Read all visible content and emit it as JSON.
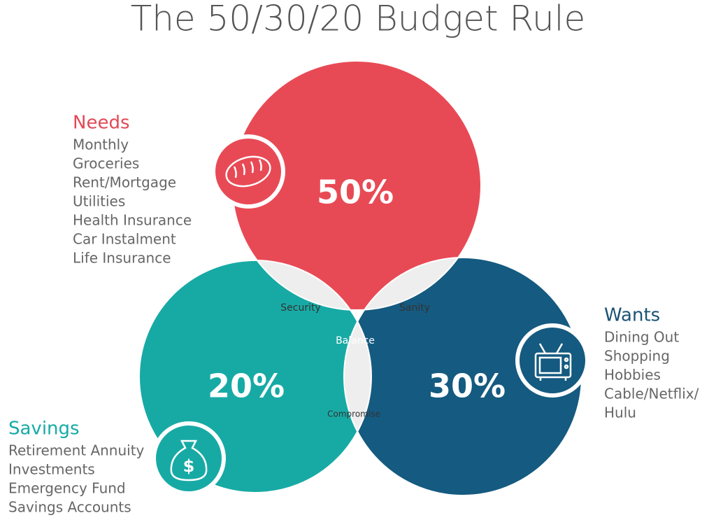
{
  "title": "The 50/30/20 Budget Rule",
  "groups": [
    {
      "label": "Needs",
      "percent": "50%",
      "items": [
        "Monthly",
        "Groceries",
        "Rent/Mortgage",
        "Utilities",
        "Health Insurance",
        "Car Instalment",
        "Life Insurance"
      ]
    },
    {
      "label": "Wants",
      "percent": "30%",
      "items": [
        "Dining Out",
        "Shopping",
        "Hobbies",
        "Cable/Netflix/",
        "Hulu"
      ]
    },
    {
      "label": "Savings",
      "percent": "20%",
      "items": [
        "Retirement Annuity",
        "Investments",
        "Emergency Fund",
        "Savings Accounts"
      ]
    }
  ],
  "overlaps": [
    "Security",
    "Sanity",
    "Compromise",
    "Balance"
  ]
}
